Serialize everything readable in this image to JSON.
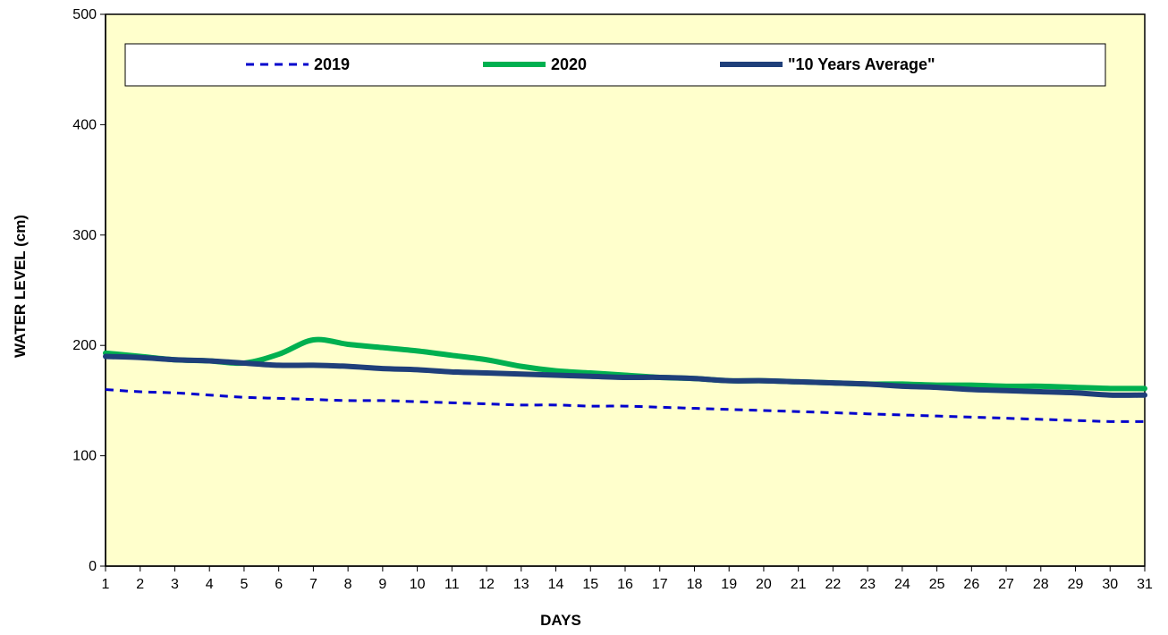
{
  "chart_data": {
    "type": "line",
    "title": "",
    "xlabel": "DAYS",
    "ylabel": "WATER LEVEL (cm)",
    "xlim": [
      1,
      31
    ],
    "ylim": [
      0,
      500
    ],
    "yticks": [
      0,
      100,
      200,
      300,
      400,
      500
    ],
    "x": [
      1,
      2,
      3,
      4,
      5,
      6,
      7,
      8,
      9,
      10,
      11,
      12,
      13,
      14,
      15,
      16,
      17,
      18,
      19,
      20,
      21,
      22,
      23,
      24,
      25,
      26,
      27,
      28,
      29,
      30,
      31
    ],
    "grid": false,
    "legend_position": "top",
    "plot_background": "#ffffcc",
    "series": [
      {
        "name": "2019",
        "style": "dashed",
        "color": "#0000cc",
        "values": [
          160,
          158,
          157,
          155,
          153,
          152,
          151,
          150,
          150,
          149,
          148,
          147,
          146,
          146,
          145,
          145,
          144,
          143,
          142,
          141,
          140,
          139,
          138,
          137,
          136,
          135,
          134,
          133,
          132,
          131,
          131
        ]
      },
      {
        "name": "2020",
        "style": "solid",
        "color": "#00b050",
        "values": [
          193,
          190,
          187,
          186,
          184,
          192,
          205,
          201,
          198,
          195,
          191,
          187,
          181,
          177,
          175,
          173,
          171,
          170,
          168,
          168,
          167,
          166,
          165,
          165,
          164,
          164,
          163,
          163,
          162,
          161,
          161
        ]
      },
      {
        "name": "\"10 Years Average\"",
        "style": "solid",
        "color": "#1f3f7a",
        "values": [
          190,
          189,
          187,
          186,
          184,
          182,
          182,
          181,
          179,
          178,
          176,
          175,
          174,
          173,
          172,
          171,
          171,
          170,
          168,
          168,
          167,
          166,
          165,
          163,
          162,
          160,
          159,
          158,
          157,
          155,
          155
        ]
      }
    ]
  }
}
